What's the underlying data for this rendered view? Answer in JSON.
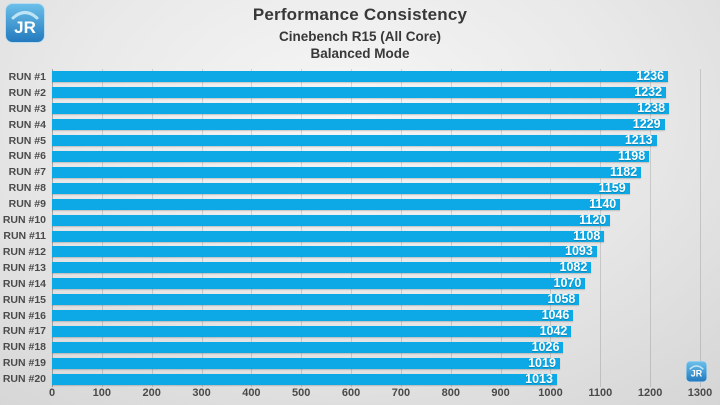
{
  "brand": {
    "logo_text": "JR"
  },
  "header": {
    "title": "Performance Consistency",
    "subtitle1": "Cinebench R15 (All Core)",
    "subtitle2": "Balanced Mode"
  },
  "colors": {
    "bar": "#0da9e6",
    "value_text": "#ffffff",
    "run_label_text": "#4a4a4a",
    "axis_label_text": "#4a4a4a",
    "title_text": "#383838",
    "logo_gradient_top": "#6cc0ea",
    "logo_gradient_bottom": "#2279bd"
  },
  "chart_data": {
    "type": "bar",
    "orientation": "horizontal",
    "title": "Performance Consistency",
    "subtitle": [
      "Cinebench R15 (All Core)",
      "Balanced Mode"
    ],
    "categories": [
      "RUN #1",
      "RUN #2",
      "RUN #3",
      "RUN #4",
      "RUN #5",
      "RUN #6",
      "RUN #7",
      "RUN #8",
      "RUN #9",
      "RUN #10",
      "RUN #11",
      "RUN #12",
      "RUN #13",
      "RUN #14",
      "RUN #15",
      "RUN #16",
      "RUN #17",
      "RUN #18",
      "RUN #19",
      "RUN #20"
    ],
    "values": [
      1236,
      1232,
      1238,
      1229,
      1213,
      1198,
      1182,
      1159,
      1140,
      1120,
      1108,
      1093,
      1082,
      1070,
      1058,
      1046,
      1042,
      1026,
      1019,
      1013
    ],
    "xlabel": "",
    "ylabel": "",
    "xlim": [
      0,
      1300
    ],
    "x_ticks": [
      0,
      100,
      200,
      300,
      400,
      500,
      600,
      700,
      800,
      900,
      1000,
      1100,
      1200,
      1300
    ],
    "grid": true,
    "legend": false,
    "value_labels": "inside-end"
  }
}
